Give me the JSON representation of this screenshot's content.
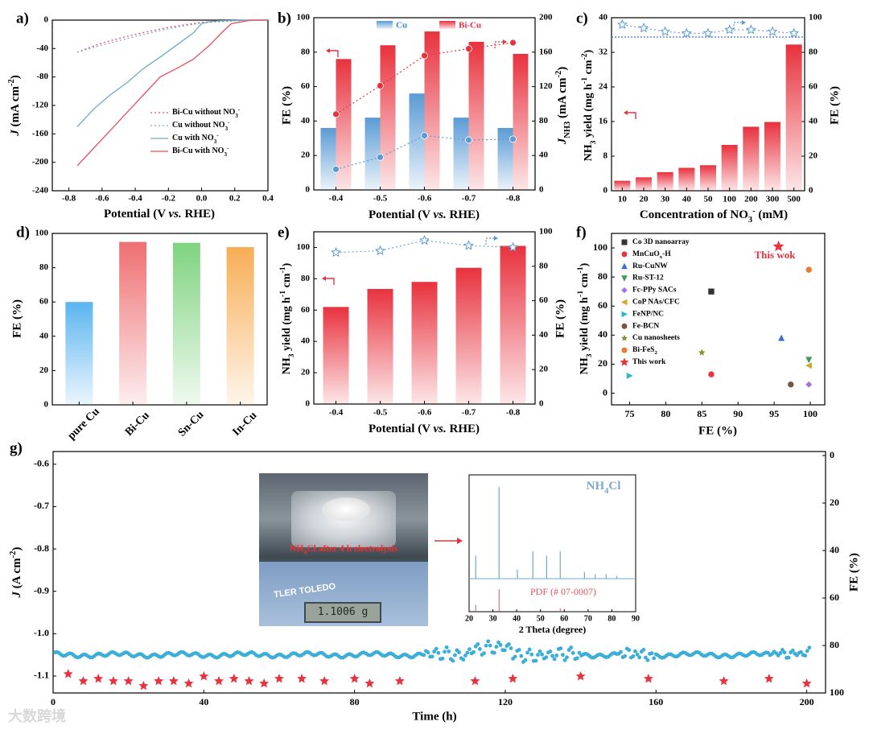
{
  "panels": {
    "a": {
      "label": "a)",
      "chart_data": {
        "type": "line",
        "xlabel_parts": [
          "Potential (V ",
          "vs.",
          " RHE)"
        ],
        "ylabel_parts": [
          "J",
          " (mA cm",
          "-2",
          ")"
        ],
        "xlim": [
          -0.9,
          0.4
        ],
        "ylim": [
          -240,
          0
        ],
        "xticks": [
          "-0.8",
          "-0.6",
          "-0.4",
          "-0.2",
          "0.0",
          "0.2",
          "0.4"
        ],
        "yticks": [
          "0",
          "-40",
          "-80",
          "-120",
          "-160",
          "-200",
          "-240"
        ],
        "series": [
          {
            "name": "Bi-Cu without NO3-",
            "legend": "Bi-Cu without NO",
            "legend_sub": "3",
            "legend_sup": "-",
            "color": "#e8505b",
            "style": "dotted",
            "x": [
              -0.75,
              -0.6,
              -0.4,
              -0.2,
              0.0,
              0.1,
              0.2,
              0.3,
              0.4
            ],
            "y": [
              -45,
              -32,
              -20,
              -10,
              -3,
              -2,
              -1,
              -0.5,
              0
            ]
          },
          {
            "name": "Cu without NO3-",
            "legend": "Cu without NO",
            "legend_sub": "3",
            "legend_sup": "-",
            "color": "#7fa8d0",
            "style": "dotted",
            "x": [
              -0.75,
              -0.6,
              -0.4,
              -0.2,
              0.0,
              0.2,
              0.4
            ],
            "y": [
              -45,
              -35,
              -23,
              -12,
              -4,
              -1,
              0
            ]
          },
          {
            "name": "Cu with NO3-",
            "legend": "Cu with NO",
            "legend_sub": "3",
            "legend_sup": "-",
            "color": "#6fa8cf",
            "style": "solid",
            "x": [
              -0.75,
              -0.65,
              -0.55,
              -0.45,
              -0.35,
              -0.25,
              -0.15,
              -0.05,
              0.0,
              0.05,
              0.1,
              0.2,
              0.3,
              0.4
            ],
            "y": [
              -150,
              -125,
              -105,
              -88,
              -68,
              -52,
              -35,
              -18,
              -5,
              -2,
              -1,
              -0.5,
              0,
              0
            ]
          },
          {
            "name": "Bi-Cu with NO3-",
            "legend": "Bi-Cu with NO",
            "legend_sub": "3",
            "legend_sup": "-",
            "color": "#e8505b",
            "style": "solid",
            "x": [
              -0.75,
              -0.65,
              -0.55,
              -0.45,
              -0.35,
              -0.25,
              -0.15,
              -0.05,
              0.05,
              0.12,
              0.18,
              0.25,
              0.3,
              0.4
            ],
            "y": [
              -205,
              -180,
              -155,
              -130,
              -105,
              -80,
              -68,
              -55,
              -35,
              -18,
              -5,
              -2,
              0,
              0
            ]
          }
        ]
      }
    },
    "b": {
      "label": "b)",
      "chart_data": {
        "type": "bar",
        "categories": [
          "-0.4",
          "-0.5",
          "-0.6",
          "-0.7",
          "-0.8"
        ],
        "xlabel_parts": [
          "Potential (V ",
          "vs.",
          " RHE)"
        ],
        "ylabel": "FE (%)",
        "y2label_parts": [
          "J",
          "NH",
          "3",
          " (mA cm",
          "-2",
          ")"
        ],
        "ylim": [
          0,
          100
        ],
        "y2lim": [
          0,
          200
        ],
        "yticks": [
          "0",
          "20",
          "40",
          "60",
          "80",
          "100"
        ],
        "y2ticks": [
          "0",
          "40",
          "80",
          "120",
          "160",
          "200"
        ],
        "legend": [
          "Cu",
          "Bi-Cu"
        ],
        "series": [
          {
            "name": "Cu",
            "axis": "FE",
            "values": [
              36,
              42,
              56,
              42,
              36
            ],
            "color": "#5b9bd5"
          },
          {
            "name": "Bi-Cu",
            "axis": "FE",
            "values": [
              76,
              84,
              92,
              86,
              79
            ],
            "color": "#e8323e"
          },
          {
            "name": "Cu J",
            "axis": "J",
            "values": [
              24,
              38,
              63,
              58,
              59
            ],
            "color": "#5b9bd5"
          },
          {
            "name": "Bi-Cu J",
            "axis": "J",
            "values": [
              88,
              121,
              156,
              164,
              171
            ],
            "color": "#e8323e"
          }
        ]
      }
    },
    "c": {
      "label": "c)",
      "chart_data": {
        "type": "bar",
        "categories": [
          "10",
          "20",
          "30",
          "40",
          "50",
          "100",
          "200",
          "300",
          "500"
        ],
        "xlabel_parts": [
          "Concentration of NO",
          "3",
          "-",
          " (mM)"
        ],
        "ylabel_parts": [
          "NH",
          "3",
          " yield (mg h",
          "-1",
          " cm",
          "-2",
          ")"
        ],
        "y2label": "FE (%)",
        "ylim": [
          0,
          40
        ],
        "y2lim": [
          0,
          100
        ],
        "yticks": [
          "0",
          "8",
          "16",
          "24",
          "32",
          "40"
        ],
        "y2ticks": [
          "0",
          "20",
          "40",
          "60",
          "80",
          "100"
        ],
        "series": [
          {
            "name": "NH3 yield",
            "values": [
              2.3,
              3.1,
              4.3,
              5.3,
              5.9,
              10.6,
              14.8,
              15.9,
              33.8
            ],
            "color": "#e8323e"
          },
          {
            "name": "FE",
            "values": [
              96,
              94,
              92,
              91,
              91,
              93,
              93,
              92,
              91
            ],
            "color": "#5b9bd5"
          }
        ]
      }
    },
    "d": {
      "label": "d)",
      "chart_data": {
        "type": "bar",
        "categories": [
          "pure Cu",
          "Bi-Cu",
          "Sn-Cu",
          "In-Cu"
        ],
        "ylabel": "FE (%)",
        "ylim": [
          0,
          100
        ],
        "yticks": [
          "0",
          "20",
          "40",
          "60",
          "80",
          "100"
        ],
        "values": [
          60,
          95,
          94.5,
          92
        ],
        "colors": [
          "#5bb4f0",
          "#ef6f72",
          "#7fd37f",
          "#f7ad55"
        ]
      }
    },
    "e": {
      "label": "e)",
      "chart_data": {
        "type": "bar",
        "categories": [
          "-0.4",
          "-0.5",
          "-0.6",
          "-0.7",
          "-0.8"
        ],
        "xlabel_parts": [
          "Potential (V ",
          "vs.",
          " RHE)"
        ],
        "ylabel_parts": [
          "NH",
          "3",
          " yield (mg h",
          "-1",
          " cm",
          "-1",
          ")"
        ],
        "y2label": "FE (%)",
        "ylim": [
          0,
          110
        ],
        "y2lim": [
          0,
          100
        ],
        "yticks": [
          "0",
          "20",
          "40",
          "60",
          "80",
          "100"
        ],
        "y2ticks": [
          "0",
          "20",
          "40",
          "60",
          "80",
          "100"
        ],
        "series": [
          {
            "name": "NH3 yield",
            "values": [
              62,
              73.5,
              78,
              87,
              101
            ],
            "color": "#e8323e"
          },
          {
            "name": "FE",
            "values": [
              88,
              89,
              95,
              92,
              91
            ],
            "color": "#5b9bd5"
          }
        ]
      }
    },
    "f": {
      "label": "f)",
      "chart_data": {
        "type": "scatter",
        "xlabel": "FE (%)",
        "ylabel_parts": [
          "NH",
          "3",
          " yield (mg h",
          "-1",
          " cm",
          "-1",
          ")"
        ],
        "xlim": [
          72.5,
          102
        ],
        "ylim": [
          -8,
          110
        ],
        "xticks": [
          "75",
          "80",
          "85",
          "90",
          "95",
          "100"
        ],
        "yticks": [
          "0",
          "20",
          "40",
          "60",
          "80",
          "100"
        ],
        "annotation": "This wok",
        "series": [
          {
            "name": "Co 3D nanoarray",
            "legend": "Co 3D nanoarray",
            "marker": "square",
            "color": "#333333",
            "x": [
              86.3
            ],
            "y": [
              70
            ]
          },
          {
            "name": "MnCuOx-H",
            "legend": "MnCuO",
            "legend_sub": "x",
            "legend_tail": "-H",
            "marker": "circle",
            "color": "#e8323e",
            "x": [
              86.3
            ],
            "y": [
              13
            ]
          },
          {
            "name": "Ru-CuNW",
            "legend": "Ru-CuNW",
            "marker": "triangle-up",
            "color": "#3b6fd1",
            "x": [
              96
            ],
            "y": [
              38
            ]
          },
          {
            "name": "Ru-ST-12",
            "legend": "Ru-ST-12",
            "marker": "triangle-down",
            "color": "#3a9a5a",
            "x": [
              99.8
            ],
            "y": [
              23
            ]
          },
          {
            "name": "Fc-PPy SACs",
            "legend": "Fc-PPy SACs",
            "marker": "diamond",
            "color": "#a070e0",
            "x": [
              99.8
            ],
            "y": [
              6
            ]
          },
          {
            "name": "CoP NAs/CFC",
            "legend": "CoP NAs/CFC",
            "marker": "triangle-left",
            "color": "#d4a52a",
            "x": [
              99.8
            ],
            "y": [
              19
            ]
          },
          {
            "name": "FeNP/NC",
            "legend": "FeNP/NC",
            "marker": "triangle-right",
            "color": "#30b8c8",
            "x": [
              75
            ],
            "y": [
              12
            ]
          },
          {
            "name": "Fe-BCN",
            "legend": "Fe-BCN",
            "marker": "circle",
            "color": "#7a5545",
            "x": [
              97.3
            ],
            "y": [
              6
            ]
          },
          {
            "name": "Cu nanosheets",
            "legend": "Cu nanosheets",
            "marker": "star",
            "color": "#8a8a30",
            "x": [
              85
            ],
            "y": [
              28
            ]
          },
          {
            "name": "Bi-FeS2",
            "legend": "Bi-FeS",
            "legend_sub": "2",
            "marker": "circle",
            "color": "#f07830",
            "x": [
              99.8
            ],
            "y": [
              85
            ]
          },
          {
            "name": "This work",
            "legend": "This work",
            "marker": "star",
            "color": "#e8323e",
            "x": [
              95.6
            ],
            "y": [
              101
            ]
          }
        ]
      }
    },
    "g": {
      "label": "g)",
      "chart_data": {
        "type": "scatter",
        "xlabel": "Time (h)",
        "ylabel_parts": [
          "J",
          " (A cm",
          "-2",
          ")"
        ],
        "y2label": "FE (%)",
        "xlim": [
          0,
          205
        ],
        "ylim": [
          -1.14,
          -0.57
        ],
        "y2lim": [
          0,
          100
        ],
        "xticks": [
          "0",
          "40",
          "80",
          "120",
          "160",
          "200"
        ],
        "yticks": [
          "-0.6",
          "-0.7",
          "-0.8",
          "-0.9",
          "-1.0",
          "-1.1"
        ],
        "y2ticks": [
          "0",
          "20",
          "40",
          "60",
          "80",
          "100"
        ],
        "fe": {
          "color": "#e8323e",
          "x": [
            4,
            8,
            12,
            16,
            20,
            24,
            28,
            32,
            36,
            40,
            44,
            48,
            52,
            56,
            60,
            66,
            72,
            80,
            84,
            92,
            112,
            122,
            140,
            158,
            178,
            190,
            200
          ],
          "y": [
            92,
            95,
            94,
            95,
            95,
            97,
            95,
            95,
            96,
            93,
            95,
            94,
            95,
            96,
            94,
            94,
            95,
            94,
            96,
            95,
            95,
            94,
            93,
            94,
            95,
            94,
            96
          ]
        },
        "current": {
          "color": "#3aaed8",
          "baseline": -1.05
        },
        "inset_photo": {
          "caption_parts": [
            "NH",
            "4",
            "Cl after 4 h electrolysis"
          ],
          "brand": "TLER TOLEDO",
          "display": "1.1006 g"
        },
        "inset_xrd": {
          "title_parts": [
            "NH",
            "4",
            "Cl"
          ],
          "ref_label": "PDF (# 07-0007)",
          "xlabel": "2 Theta (degree)",
          "xlim": [
            20,
            90
          ],
          "xticks": [
            "20",
            "30",
            "40",
            "50",
            "60",
            "70",
            "80",
            "90"
          ],
          "peaks": [
            [
              22.8,
              0.25
            ],
            [
              32.6,
              1.0
            ],
            [
              40.3,
              0.1
            ],
            [
              46.8,
              0.3
            ],
            [
              52.6,
              0.25
            ],
            [
              58.3,
              0.3
            ],
            [
              68.5,
              0.07
            ],
            [
              73.0,
              0.05
            ],
            [
              77.6,
              0.05
            ],
            [
              82.0,
              0.03
            ]
          ],
          "refs": [
            [
              22.8,
              0.3
            ],
            [
              32.6,
              1.0
            ],
            [
              58.3,
              0.15
            ]
          ]
        }
      }
    }
  },
  "watermark": "大数跨境"
}
